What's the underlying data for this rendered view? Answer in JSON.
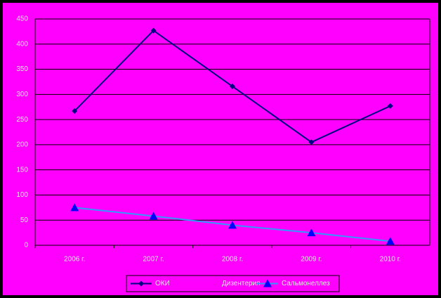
{
  "chart_data": {
    "type": "line",
    "categories": [
      "2006 г.",
      "2007 г.",
      "2008 г.",
      "2009 г.",
      "2010 г."
    ],
    "series": [
      {
        "name": "ОКИ",
        "color": "#000080",
        "marker": "diamond",
        "values": [
          267,
          427,
          316,
          205,
          277
        ]
      },
      {
        "name": "Дизентерия",
        "color": "#ff00ff",
        "marker": "none",
        "values": [
          null,
          null,
          null,
          null,
          null
        ]
      },
      {
        "name": "Сальмонеллез",
        "color": "#0000ff",
        "line_color": "#3399ff",
        "marker": "triangle",
        "values": [
          75,
          58,
          40,
          25,
          8
        ]
      }
    ],
    "ylim": [
      0,
      450
    ],
    "yticks": [
      0,
      50,
      100,
      150,
      200,
      250,
      300,
      350,
      400,
      450
    ],
    "grid": true,
    "legend": "bottom"
  }
}
